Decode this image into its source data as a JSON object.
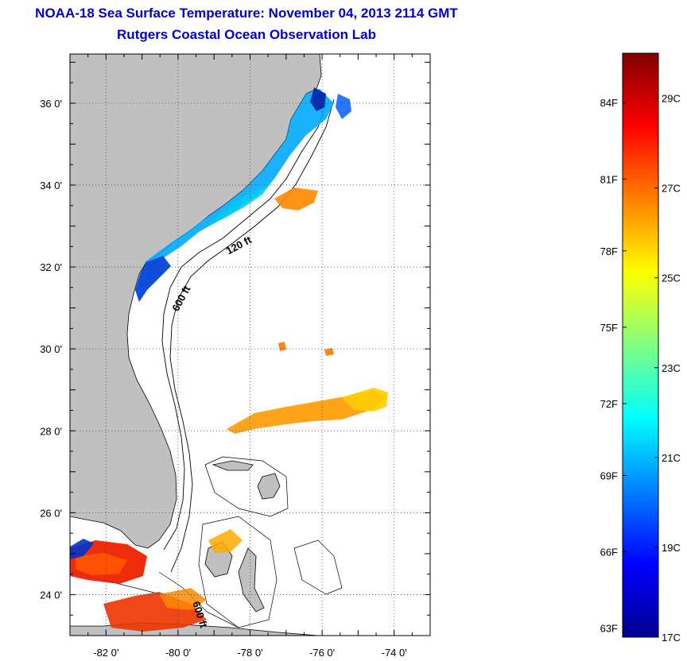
{
  "title": {
    "line1": "NOAA-18 Sea Surface Temperature:  November 04, 2013 2114 GMT",
    "line2": "Rutgers Coastal Ocean Observation Lab"
  },
  "map": {
    "lon_range": [
      -83,
      -73
    ],
    "lat_range": [
      23,
      37.2
    ],
    "lon_ticks": [
      {
        "value": -82,
        "label": "-82 0'"
      },
      {
        "value": -80,
        "label": "-80 0'"
      },
      {
        "value": -78,
        "label": "-78 0'"
      },
      {
        "value": -76,
        "label": "-76 0'"
      },
      {
        "value": -74,
        "label": "-74 0'"
      }
    ],
    "lat_ticks": [
      {
        "value": 24,
        "label": "24 0'"
      },
      {
        "value": 26,
        "label": "26 0'"
      },
      {
        "value": 28,
        "label": "28 0'"
      },
      {
        "value": 30,
        "label": "30 0'"
      },
      {
        "value": 32,
        "label": "32 0'"
      },
      {
        "value": 34,
        "label": "34 0'"
      },
      {
        "value": 36,
        "label": "36 0'"
      }
    ],
    "grid": "dotted",
    "contour_labels": [
      {
        "text": "120 ft",
        "lon": -78.6,
        "lat": 32.3
      },
      {
        "text": "600 ft",
        "lon": -80.0,
        "lat": 30.9
      },
      {
        "text": "600 ft",
        "lon": -79.6,
        "lat": 23.8
      }
    ],
    "land_color": "#c0c0c0",
    "ocean_color": "#ffffff"
  },
  "colorbar": {
    "range_c": [
      17,
      30
    ],
    "left_labels": [
      {
        "value_c": 17.2,
        "label": "63F"
      },
      {
        "value_c": 18.9,
        "label": "66F"
      },
      {
        "value_c": 20.6,
        "label": "69F"
      },
      {
        "value_c": 22.2,
        "label": "72F"
      },
      {
        "value_c": 23.9,
        "label": "75F"
      },
      {
        "value_c": 25.6,
        "label": "78F"
      },
      {
        "value_c": 27.2,
        "label": "81F"
      },
      {
        "value_c": 28.9,
        "label": "84F"
      }
    ],
    "right_labels": [
      {
        "value_c": 17,
        "label": "17C"
      },
      {
        "value_c": 19,
        "label": "19C"
      },
      {
        "value_c": 21,
        "label": "21C"
      },
      {
        "value_c": 23,
        "label": "23C"
      },
      {
        "value_c": 25,
        "label": "25C"
      },
      {
        "value_c": 27,
        "label": "27C"
      },
      {
        "value_c": 29,
        "label": "29C"
      }
    ],
    "colormap": [
      "#00008f",
      "#0000ff",
      "#0080ff",
      "#00ffff",
      "#80ff80",
      "#ffff00",
      "#ff8000",
      "#ff0000",
      "#800000"
    ]
  }
}
